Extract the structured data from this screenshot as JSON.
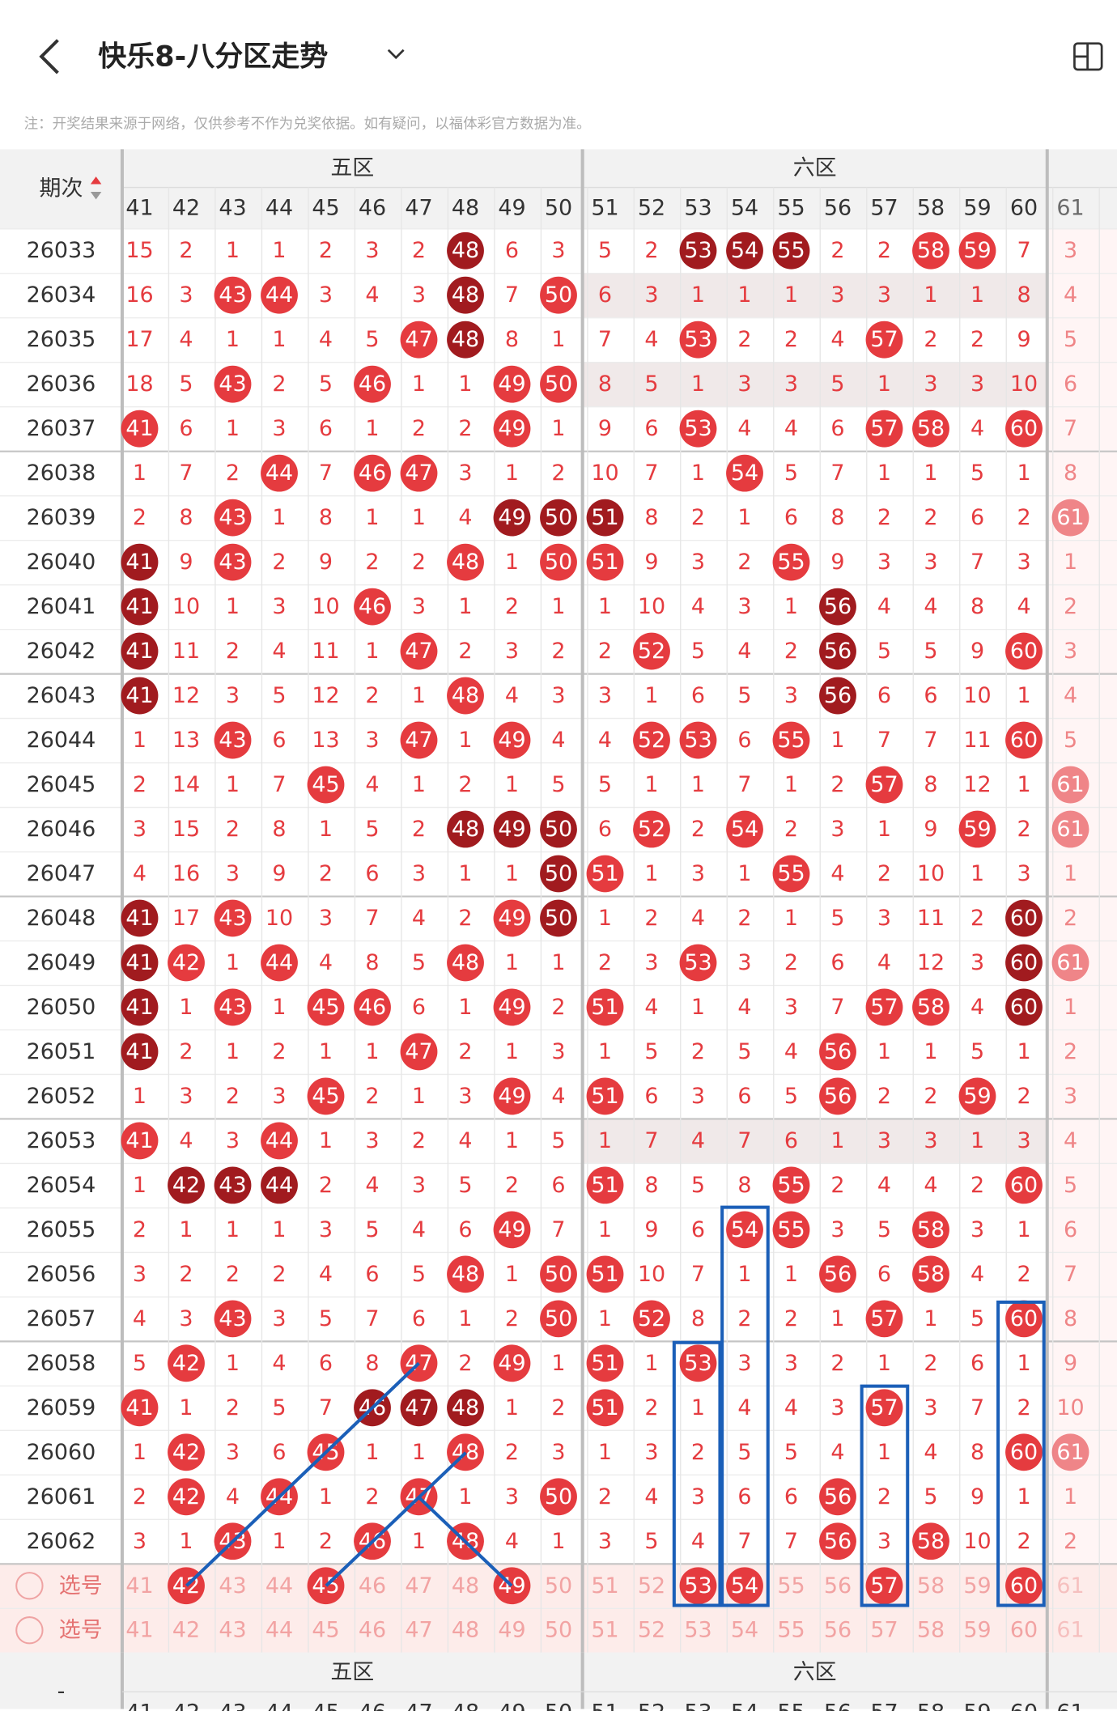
{
  "header": {
    "title": "快乐8-八分区走势"
  },
  "note": "注：开奖结果来源于网络，仅供参考不作为兑奖依据。如有疑问，以福体彩官方数据为准。",
  "table": {
    "issue_header": "期次",
    "zones": [
      "五区",
      "六区"
    ],
    "columns": [
      41,
      42,
      43,
      44,
      45,
      46,
      47,
      48,
      49,
      50,
      51,
      52,
      53,
      54,
      55,
      56,
      57,
      58,
      59,
      60,
      61
    ],
    "rows": [
      {
        "issue": "26033",
        "values": [
          15,
          2,
          1,
          1,
          2,
          3,
          2,
          48,
          6,
          3,
          5,
          2,
          53,
          54,
          55,
          2,
          2,
          58,
          59,
          7,
          3
        ],
        "marks": "nnnnnnndnnnndddnnbbnn",
        "shade": false
      },
      {
        "issue": "26034",
        "values": [
          16,
          3,
          43,
          44,
          3,
          4,
          3,
          48,
          7,
          50,
          6,
          3,
          1,
          1,
          1,
          3,
          3,
          1,
          1,
          8,
          4
        ],
        "marks": "nnbbnnndnbnnnnnnnnnnn",
        "shade": true
      },
      {
        "issue": "26035",
        "values": [
          17,
          4,
          1,
          1,
          4,
          5,
          47,
          48,
          8,
          1,
          7,
          4,
          53,
          2,
          2,
          4,
          57,
          2,
          2,
          9,
          5
        ],
        "marks": "nnnnnnbdnnnnbnnnbnnnn",
        "shade": false
      },
      {
        "issue": "26036",
        "values": [
          18,
          5,
          43,
          2,
          5,
          46,
          1,
          1,
          49,
          50,
          8,
          5,
          1,
          3,
          3,
          5,
          1,
          3,
          3,
          10,
          6
        ],
        "marks": "nnbnnbnnbbnnnnnnnnnnn",
        "shade": true
      },
      {
        "issue": "26037",
        "values": [
          41,
          6,
          1,
          3,
          6,
          1,
          2,
          2,
          49,
          1,
          9,
          6,
          53,
          4,
          4,
          6,
          57,
          58,
          4,
          60,
          7
        ],
        "marks": "bnnnnnnnbnnnbnnnbbnbn",
        "shade": false
      },
      {
        "issue": "26038",
        "values": [
          1,
          7,
          2,
          44,
          7,
          46,
          47,
          3,
          1,
          2,
          10,
          7,
          1,
          54,
          5,
          7,
          1,
          1,
          5,
          1,
          8
        ],
        "marks": "nnnbnbbnnnnnnbnnnnnnn",
        "shade": false
      },
      {
        "issue": "26039",
        "values": [
          2,
          8,
          43,
          1,
          8,
          1,
          1,
          4,
          49,
          50,
          51,
          8,
          2,
          1,
          6,
          8,
          2,
          2,
          6,
          2,
          61
        ],
        "marks": "nnbnnnnndddnnnnnnnnnb",
        "shade": false
      },
      {
        "issue": "26040",
        "values": [
          41,
          9,
          43,
          2,
          9,
          2,
          2,
          48,
          1,
          50,
          51,
          9,
          3,
          2,
          55,
          9,
          3,
          3,
          7,
          3,
          1
        ],
        "marks": "dnbnnnnbnbbnnnbnnnnnn",
        "shade": false
      },
      {
        "issue": "26041",
        "values": [
          41,
          10,
          1,
          3,
          10,
          46,
          3,
          1,
          2,
          1,
          1,
          10,
          4,
          3,
          1,
          56,
          4,
          4,
          8,
          4,
          2
        ],
        "marks": "dnnnnbnnnnnnnnndnnnnn",
        "shade": false
      },
      {
        "issue": "26042",
        "values": [
          41,
          11,
          2,
          4,
          11,
          1,
          47,
          2,
          3,
          2,
          2,
          52,
          5,
          4,
          2,
          56,
          5,
          5,
          9,
          60,
          3
        ],
        "marks": "dnnnnnbnnnnbnnndnnnbn",
        "shade": false
      },
      {
        "issue": "26043",
        "values": [
          41,
          12,
          3,
          5,
          12,
          2,
          1,
          48,
          4,
          3,
          3,
          1,
          6,
          5,
          3,
          56,
          6,
          6,
          10,
          1,
          4
        ],
        "marks": "dnnnnnnbnnnnnnndnnnnn",
        "shade": false
      },
      {
        "issue": "26044",
        "values": [
          1,
          13,
          43,
          6,
          13,
          3,
          47,
          1,
          49,
          4,
          4,
          52,
          53,
          6,
          55,
          1,
          7,
          7,
          11,
          60,
          5
        ],
        "marks": "nnbnnnbnbnnbbnbnnnnbn",
        "shade": false
      },
      {
        "issue": "26045",
        "values": [
          2,
          14,
          1,
          7,
          45,
          4,
          1,
          2,
          1,
          5,
          5,
          1,
          1,
          7,
          1,
          2,
          57,
          8,
          12,
          1,
          61
        ],
        "marks": "nnnnbnnnnnnnnnnnbnnnb",
        "shade": false
      },
      {
        "issue": "26046",
        "values": [
          3,
          15,
          2,
          8,
          1,
          5,
          2,
          48,
          49,
          50,
          6,
          52,
          2,
          54,
          2,
          3,
          1,
          9,
          59,
          2,
          61
        ],
        "marks": "nnnnnnndddnbnbnnnnbnb",
        "shade": false
      },
      {
        "issue": "26047",
        "values": [
          4,
          16,
          3,
          9,
          2,
          6,
          3,
          1,
          1,
          50,
          51,
          1,
          3,
          1,
          55,
          4,
          2,
          10,
          1,
          3,
          1
        ],
        "marks": "nnnnnnnnndbnnnbnnnnnn",
        "shade": false
      },
      {
        "issue": "26048",
        "values": [
          41,
          17,
          43,
          10,
          3,
          7,
          4,
          2,
          49,
          50,
          1,
          2,
          4,
          2,
          1,
          5,
          3,
          11,
          2,
          60,
          2
        ],
        "marks": "dnbnnnnnbdnnnnnnnnndn",
        "shade": false
      },
      {
        "issue": "26049",
        "values": [
          41,
          42,
          1,
          44,
          4,
          8,
          5,
          48,
          1,
          1,
          2,
          3,
          53,
          3,
          2,
          6,
          4,
          12,
          3,
          60,
          61
        ],
        "marks": "dbnbnnnbnnnnbnnnnnndb",
        "shade": false
      },
      {
        "issue": "26050",
        "values": [
          41,
          1,
          43,
          1,
          45,
          46,
          6,
          1,
          49,
          2,
          51,
          4,
          1,
          4,
          3,
          7,
          57,
          58,
          4,
          60,
          1
        ],
        "marks": "dnbnbbnnbnbnnnnnbbndn",
        "shade": false
      },
      {
        "issue": "26051",
        "values": [
          41,
          2,
          1,
          2,
          1,
          1,
          47,
          2,
          1,
          3,
          1,
          5,
          2,
          5,
          4,
          56,
          1,
          1,
          5,
          1,
          2
        ],
        "marks": "dnnnnnbnnnnnnnnbnnnnn",
        "shade": false
      },
      {
        "issue": "26052",
        "values": [
          1,
          3,
          2,
          3,
          45,
          2,
          1,
          3,
          49,
          4,
          51,
          6,
          3,
          6,
          5,
          56,
          2,
          2,
          59,
          2,
          3
        ],
        "marks": "nnnnbnnnbnbnnnnbnnbnn",
        "shade": false
      },
      {
        "issue": "26053",
        "values": [
          41,
          4,
          3,
          44,
          1,
          3,
          2,
          4,
          1,
          5,
          1,
          7,
          4,
          7,
          6,
          1,
          3,
          3,
          1,
          3,
          4
        ],
        "marks": "bnnbnnnnnnnnnnnnnnnnn",
        "shade": true
      },
      {
        "issue": "26054",
        "values": [
          1,
          42,
          43,
          44,
          2,
          4,
          3,
          5,
          2,
          6,
          51,
          8,
          5,
          8,
          55,
          2,
          4,
          4,
          2,
          60,
          5
        ],
        "marks": "ndddnnnnnnbnnnbnnnnbn",
        "shade": false
      },
      {
        "issue": "26055",
        "values": [
          2,
          1,
          1,
          1,
          3,
          5,
          4,
          6,
          49,
          7,
          1,
          9,
          6,
          54,
          55,
          3,
          5,
          58,
          3,
          1,
          6
        ],
        "marks": "nnnnnnnnbnnnnbbnnbnnn",
        "shade": false
      },
      {
        "issue": "26056",
        "values": [
          3,
          2,
          2,
          2,
          4,
          6,
          5,
          48,
          1,
          50,
          51,
          10,
          7,
          1,
          1,
          56,
          6,
          58,
          4,
          2,
          7
        ],
        "marks": "nnnnnnnbnbbnnnnbnbnnn",
        "shade": false
      },
      {
        "issue": "26057",
        "values": [
          4,
          3,
          43,
          3,
          5,
          7,
          6,
          1,
          2,
          50,
          1,
          52,
          8,
          2,
          2,
          1,
          57,
          1,
          5,
          60,
          8
        ],
        "marks": "nnbnnnnnnbnbnnnnbnnbn",
        "shade": false
      },
      {
        "issue": "26058",
        "values": [
          5,
          42,
          1,
          4,
          6,
          8,
          47,
          2,
          49,
          1,
          51,
          1,
          53,
          3,
          3,
          2,
          1,
          2,
          6,
          1,
          9
        ],
        "marks": "nbnnnnbnbnbnbnnnnnnnn",
        "shade": false
      },
      {
        "issue": "26059",
        "values": [
          41,
          1,
          2,
          5,
          7,
          46,
          47,
          48,
          1,
          2,
          51,
          2,
          1,
          4,
          4,
          3,
          57,
          3,
          7,
          2,
          10
        ],
        "marks": "bnnnndddnnbnnnnnbnnnn",
        "shade": false
      },
      {
        "issue": "26060",
        "values": [
          1,
          42,
          3,
          6,
          45,
          1,
          1,
          48,
          2,
          3,
          1,
          3,
          2,
          5,
          5,
          4,
          1,
          4,
          8,
          60,
          61
        ],
        "marks": "nbnnbnnbnnnnnnnnnnnbb",
        "shade": false
      },
      {
        "issue": "26061",
        "values": [
          2,
          42,
          4,
          44,
          1,
          2,
          47,
          1,
          3,
          50,
          2,
          4,
          3,
          6,
          6,
          56,
          2,
          5,
          9,
          1,
          1
        ],
        "marks": "nbnbnnbnnbnnnnnbnnnnn",
        "shade": false
      },
      {
        "issue": "26062",
        "values": [
          3,
          1,
          43,
          1,
          2,
          46,
          1,
          48,
          4,
          1,
          3,
          5,
          4,
          7,
          7,
          56,
          3,
          58,
          10,
          2,
          2
        ],
        "marks": "nnbnnbnbnnnnnnnbnbnnn",
        "shade": false
      }
    ],
    "select_rows": [
      {
        "label": "选号",
        "values": [
          41,
          42,
          43,
          44,
          45,
          46,
          47,
          48,
          49,
          50,
          51,
          52,
          53,
          54,
          55,
          56,
          57,
          58,
          59,
          60,
          61
        ],
        "marks": "nbnnbnnnbnnnbbnnbnnbn"
      },
      {
        "label": "选号",
        "values": [
          41,
          42,
          43,
          44,
          45,
          46,
          47,
          48,
          49,
          50,
          51,
          52,
          53,
          54,
          55,
          56,
          57,
          58,
          59,
          60,
          61
        ],
        "marks": "nnnnnnnnnnnnnnnnnnnnn"
      }
    ],
    "footer_label": "-"
  }
}
